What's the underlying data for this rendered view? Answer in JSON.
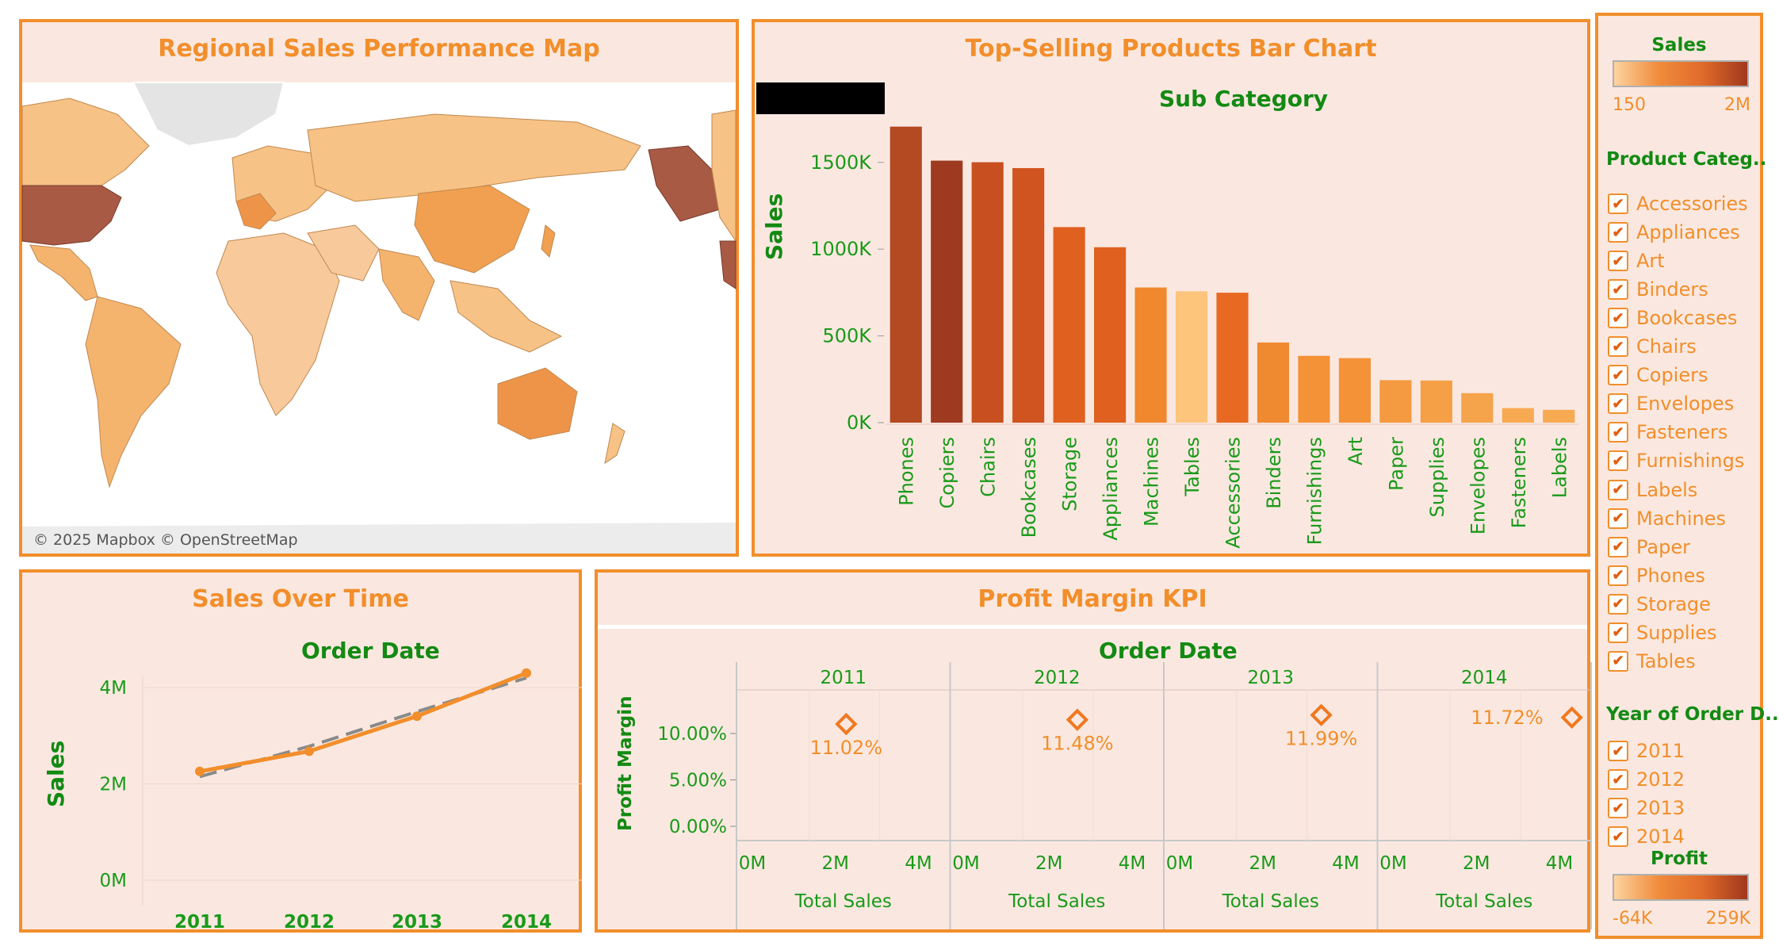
{
  "map_panel": {
    "title": "Regional Sales Performance Map",
    "attribution": "© 2025 Mapbox © OpenStreetMap"
  },
  "bar_panel": {
    "title": "Top-Selling Products Bar Chart",
    "column_header": "Sub Category",
    "ylabel": "Sales"
  },
  "line_panel": {
    "title": "Sales Over Time",
    "column_header": "Order Date",
    "ylabel": "Sales"
  },
  "kpi_panel": {
    "title": "Profit Margin KPI",
    "column_header": "Order Date",
    "ylabel": "Profit Margin",
    "xlabel": "Total Sales"
  },
  "legend_panel": {
    "sales_title": "Sales",
    "sales_min": "150",
    "sales_max": "2M",
    "category_title": "Product Categ..",
    "categories": [
      "Accessories",
      "Appliances",
      "Art",
      "Binders",
      "Bookcases",
      "Chairs",
      "Copiers",
      "Envelopes",
      "Fasteners",
      "Furnishings",
      "Labels",
      "Machines",
      "Paper",
      "Phones",
      "Storage",
      "Supplies",
      "Tables"
    ],
    "year_title": "Year of Order D..",
    "years": [
      "2011",
      "2012",
      "2013",
      "2014"
    ],
    "profit_title": "Profit",
    "profit_min": "-64K",
    "profit_max": "259K"
  },
  "colors": {
    "accent": "#f28e2b",
    "green": "#1a9a1a",
    "panel_bg": "#fae8e0",
    "ramp_light": "#fdc88a",
    "ramp_dark": "#a0381c"
  },
  "chart_data": [
    {
      "type": "bar",
      "title": "Top-Selling Products Bar Chart",
      "xlabel": "Sub Category",
      "ylabel": "Sales",
      "categories": [
        "Phones",
        "Copiers",
        "Chairs",
        "Bookcases",
        "Storage",
        "Appliances",
        "Machines",
        "Tables",
        "Accessories",
        "Binders",
        "Furnishings",
        "Art",
        "Paper",
        "Supplies",
        "Envelopes",
        "Fasteners",
        "Labels"
      ],
      "values": [
        1706000,
        1510000,
        1501000,
        1467000,
        1127000,
        1011000,
        779000,
        757000,
        749000,
        462000,
        385000,
        372000,
        245000,
        243000,
        170000,
        84000,
        74000
      ],
      "colors": [
        "#b34a22",
        "#9e3a20",
        "#c85020",
        "#d05420",
        "#e06020",
        "#e06020",
        "#f0882e",
        "#fdc47c",
        "#e86a22",
        "#f08a30",
        "#f49238",
        "#f49238",
        "#f49a40",
        "#f5a046",
        "#f5a44c",
        "#f7aa52",
        "#f7aa52"
      ],
      "ylim": [
        0,
        1800000
      ],
      "yticks": [
        "0K",
        "500K",
        "1000K",
        "1500K"
      ]
    },
    {
      "type": "line",
      "title": "Sales Over Time",
      "xlabel": "Order Date",
      "ylabel": "Sales",
      "x": [
        "2011",
        "2012",
        "2013",
        "2014"
      ],
      "series": [
        {
          "values": [
            2259000,
            2677000,
            3405000,
            4300000
          ]
        }
      ],
      "trend": [
        2150000,
        2780000,
        3500000,
        4200000
      ],
      "ylim": [
        0,
        4500000
      ],
      "yticks": [
        "0M",
        "2M",
        "4M"
      ]
    },
    {
      "type": "scatter",
      "title": "Profit Margin KPI",
      "xlabel": "Total Sales",
      "ylabel": "Profit Margin",
      "facets": [
        "2011",
        "2012",
        "2013",
        "2014"
      ],
      "points": [
        {
          "year": "2011",
          "total_sales_m": 2.26,
          "margin_pct": 11.02,
          "label": "11.02%"
        },
        {
          "year": "2012",
          "total_sales_m": 2.68,
          "margin_pct": 11.48,
          "label": "11.48%"
        },
        {
          "year": "2013",
          "total_sales_m": 3.41,
          "margin_pct": 11.99,
          "label": "11.99%"
        },
        {
          "year": "2014",
          "total_sales_m": 4.3,
          "margin_pct": 11.72,
          "label": "11.72%"
        }
      ],
      "xticks": [
        "0M",
        "2M",
        "4M"
      ],
      "yticks": [
        "0.00%",
        "5.00%",
        "10.00%"
      ]
    }
  ]
}
